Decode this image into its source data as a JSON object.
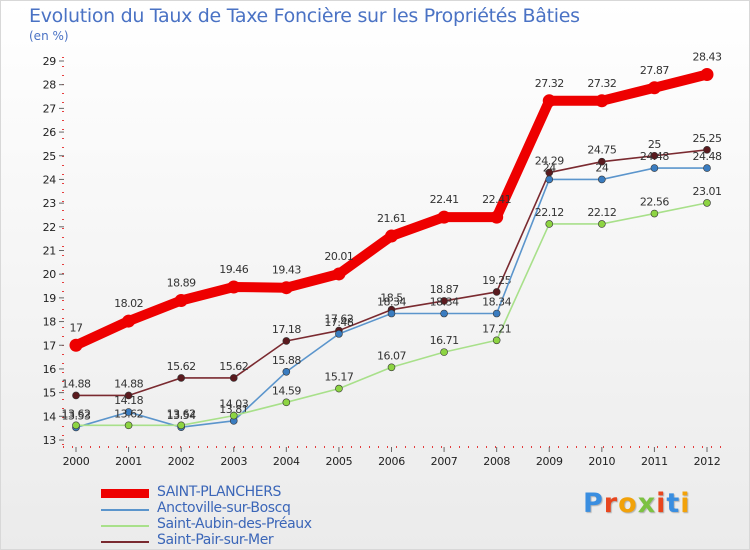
{
  "chart_data": {
    "type": "line",
    "title": "Evolution du Taux de Taxe Foncière sur les Propriétés Bâties",
    "subtitle": "(en %)",
    "x": [
      "2000",
      "2001",
      "2002",
      "2003",
      "2004",
      "2005",
      "2006",
      "2007",
      "2008",
      "2009",
      "2010",
      "2011",
      "2012"
    ],
    "y_ticks": [
      "13",
      "14",
      "15",
      "16",
      "17",
      "18",
      "19",
      "20",
      "21",
      "22",
      "23",
      "24",
      "25",
      "26",
      "27",
      "28",
      "29"
    ],
    "ylim": [
      13,
      29
    ],
    "grid": false,
    "legend_position": "bottom-left",
    "series": [
      {
        "name": "Saint-Pair-sur-Mer",
        "color": "#7a2a30",
        "point_color": "#5a1a1e",
        "values": [
          14.88,
          14.88,
          15.62,
          15.62,
          17.18,
          17.62,
          18.5,
          18.87,
          19.25,
          24.29,
          24.75,
          25,
          25.25
        ],
        "labels": [
          "14.88",
          "14.88",
          "15.62",
          "15.62",
          "17.18",
          "17.62",
          "18.5",
          "18.87",
          "19.25",
          "24.29",
          "24.75",
          "25",
          "25.25"
        ]
      },
      {
        "name": "Anctoville-sur-Boscq",
        "color": "#5b95cc",
        "point_color": "#3a7cc0",
        "values": [
          13.53,
          14.18,
          13.54,
          13.81,
          15.88,
          17.48,
          18.34,
          18.34,
          18.34,
          24,
          24,
          24.48,
          24.48
        ],
        "labels": [
          "13.53",
          "14.18",
          "13.54",
          "13.81",
          "15.88",
          "17.48",
          "18.34",
          "18.34",
          "18.34",
          "24",
          "24",
          "24.48",
          "24.48"
        ]
      },
      {
        "name": "Saint-Aubin-des-Préaux",
        "color": "#a8e08a",
        "point_color": "#8dd442",
        "values": [
          13.62,
          13.62,
          13.62,
          14.03,
          14.59,
          15.17,
          16.07,
          16.71,
          17.21,
          22.12,
          22.12,
          22.56,
          23.01
        ],
        "labels": [
          "13.62",
          "13.62",
          "13.62",
          "14.03",
          "14.59",
          "15.17",
          "16.07",
          "16.71",
          "17.21",
          "22.12",
          "22.12",
          "22.56",
          "23.01"
        ]
      },
      {
        "name": "SAINT-PLANCHERS",
        "color": "#ee0000",
        "point_color": "#ee0000",
        "values": [
          17,
          18.02,
          18.89,
          19.46,
          19.43,
          20.01,
          21.61,
          22.41,
          22.41,
          27.32,
          27.32,
          27.87,
          28.43
        ],
        "labels": [
          "17",
          "18.02",
          "18.89",
          "19.46",
          "19.43",
          "20.01",
          "21.61",
          "22.41",
          "22.41",
          "27.32",
          "27.32",
          "27.87",
          "28.43"
        ]
      }
    ]
  },
  "legend": {
    "items": [
      {
        "label": "SAINT-PLANCHERS",
        "color": "#ee0000"
      },
      {
        "label": "Anctoville-sur-Boscq",
        "color": "#5b95cc"
      },
      {
        "label": "Saint-Aubin-des-Préaux",
        "color": "#a8e08a"
      },
      {
        "label": "Saint-Pair-sur-Mer",
        "color": "#7a2a30"
      }
    ]
  },
  "brand": {
    "letters": [
      "P",
      "r",
      "o",
      "x",
      "i",
      "t",
      "i"
    ],
    "colors": [
      "#3a8ee0",
      "#e8461e",
      "#f2a20a",
      "#7cc242",
      "#e8461e",
      "#3a8ee0",
      "#f2a20a"
    ]
  }
}
